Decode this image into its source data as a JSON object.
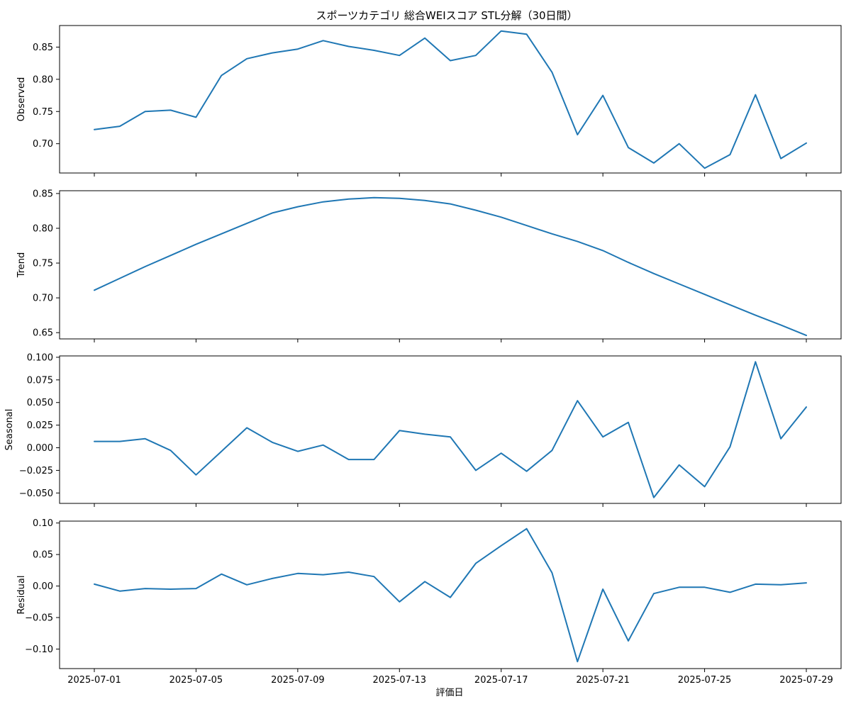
{
  "title": "スポーツカテゴリ 総合WEIスコア STL分解（30日間）",
  "xlabel": "評価日",
  "line_color": "#1f77b4",
  "chart_data": {
    "type": "line",
    "x": [
      "2025-07-01",
      "2025-07-02",
      "2025-07-03",
      "2025-07-04",
      "2025-07-05",
      "2025-07-06",
      "2025-07-07",
      "2025-07-08",
      "2025-07-09",
      "2025-07-10",
      "2025-07-11",
      "2025-07-12",
      "2025-07-13",
      "2025-07-14",
      "2025-07-15",
      "2025-07-16",
      "2025-07-17",
      "2025-07-18",
      "2025-07-19",
      "2025-07-20",
      "2025-07-21",
      "2025-07-22",
      "2025-07-23",
      "2025-07-24",
      "2025-07-25",
      "2025-07-26",
      "2025-07-27",
      "2025-07-28",
      "2025-07-29"
    ],
    "xticks": [
      "2025-07-01",
      "2025-07-05",
      "2025-07-09",
      "2025-07-13",
      "2025-07-17",
      "2025-07-21",
      "2025-07-25",
      "2025-07-29"
    ],
    "panels": [
      {
        "ylabel": "Observed",
        "ylim": [
          0.6545,
          0.8835
        ],
        "yticks": [
          "0.70",
          "0.75",
          "0.80",
          "0.85"
        ],
        "yticks_values": [
          0.7,
          0.75,
          0.8,
          0.85
        ],
        "values": [
          0.722,
          0.727,
          0.75,
          0.752,
          0.741,
          0.806,
          0.832,
          0.841,
          0.847,
          0.86,
          0.851,
          0.845,
          0.837,
          0.864,
          0.829,
          0.837,
          0.875,
          0.87,
          0.811,
          0.714,
          0.775,
          0.694,
          0.67,
          0.7,
          0.662,
          0.683,
          0.776,
          0.677,
          0.701
        ]
      },
      {
        "ylabel": "Trend",
        "ylim": [
          0.641,
          0.854
        ],
        "yticks": [
          "0.65",
          "0.70",
          "0.75",
          "0.80",
          "0.85"
        ],
        "yticks_values": [
          0.65,
          0.7,
          0.75,
          0.8,
          0.85
        ],
        "values": [
          0.711,
          0.728,
          0.745,
          0.761,
          0.777,
          0.792,
          0.807,
          0.822,
          0.831,
          0.838,
          0.842,
          0.844,
          0.843,
          0.84,
          0.835,
          0.826,
          0.816,
          0.804,
          0.792,
          0.781,
          0.768,
          0.751,
          0.735,
          0.72,
          0.705,
          0.69,
          0.675,
          0.661,
          0.646
        ]
      },
      {
        "ylabel": "Seasonal",
        "ylim": [
          -0.0615,
          0.1015
        ],
        "yticks": [
          "−0.050",
          "−0.025",
          "0.000",
          "0.025",
          "0.050",
          "0.075",
          "0.100"
        ],
        "yticks_values": [
          -0.05,
          -0.025,
          0.0,
          0.025,
          0.05,
          0.075,
          0.1
        ],
        "values": [
          0.007,
          0.007,
          0.01,
          -0.003,
          -0.03,
          -0.004,
          0.022,
          0.006,
          -0.004,
          0.003,
          -0.013,
          -0.013,
          0.019,
          0.015,
          0.012,
          -0.025,
          -0.006,
          -0.026,
          -0.003,
          0.052,
          0.012,
          0.028,
          -0.055,
          -0.019,
          -0.043,
          0.001,
          0.095,
          0.01,
          0.045
        ]
      },
      {
        "ylabel": "Residual",
        "ylim": [
          -0.131,
          0.103
        ],
        "yticks": [
          "−0.10",
          "−0.05",
          "0.00",
          "0.05",
          "0.10"
        ],
        "yticks_values": [
          -0.1,
          -0.05,
          0.0,
          0.05,
          0.1
        ],
        "values": [
          0.003,
          -0.008,
          -0.004,
          -0.005,
          -0.004,
          0.019,
          0.002,
          0.012,
          0.02,
          0.018,
          0.022,
          0.015,
          -0.025,
          0.007,
          -0.018,
          0.036,
          0.064,
          0.091,
          0.021,
          -0.12,
          -0.005,
          -0.087,
          -0.012,
          -0.002,
          -0.002,
          -0.01,
          0.003,
          0.002,
          0.005
        ]
      }
    ]
  }
}
